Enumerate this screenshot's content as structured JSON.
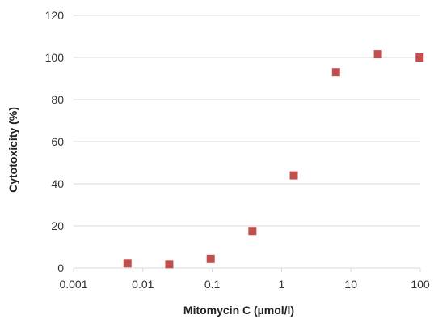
{
  "chart_data": {
    "type": "scatter",
    "title": "",
    "xlabel": "Mitomycin C (µmol/l)",
    "ylabel": "Cytotoxicity (%)",
    "x_scale": "log",
    "xlim": [
      0.001,
      100
    ],
    "ylim": [
      0,
      120
    ],
    "x_ticks": [
      0.001,
      0.01,
      0.1,
      1,
      10,
      100
    ],
    "x_tick_labels": [
      "0.001",
      "0.01",
      "0.1",
      "1",
      "10",
      "100"
    ],
    "y_ticks": [
      0,
      20,
      40,
      60,
      80,
      100,
      120
    ],
    "y_tick_labels": [
      "0",
      "20",
      "40",
      "60",
      "80",
      "100",
      "120"
    ],
    "grid": "horizontal",
    "legend": "none",
    "marker": "square",
    "marker_color": "#c0504d",
    "series": [
      {
        "x": [
          0.006,
          0.024,
          0.095,
          0.38,
          1.5,
          6.1,
          24.5,
          98
        ],
        "y": [
          2.2,
          1.8,
          4.3,
          17.6,
          44.0,
          93.0,
          101.5,
          100.0
        ]
      }
    ]
  }
}
